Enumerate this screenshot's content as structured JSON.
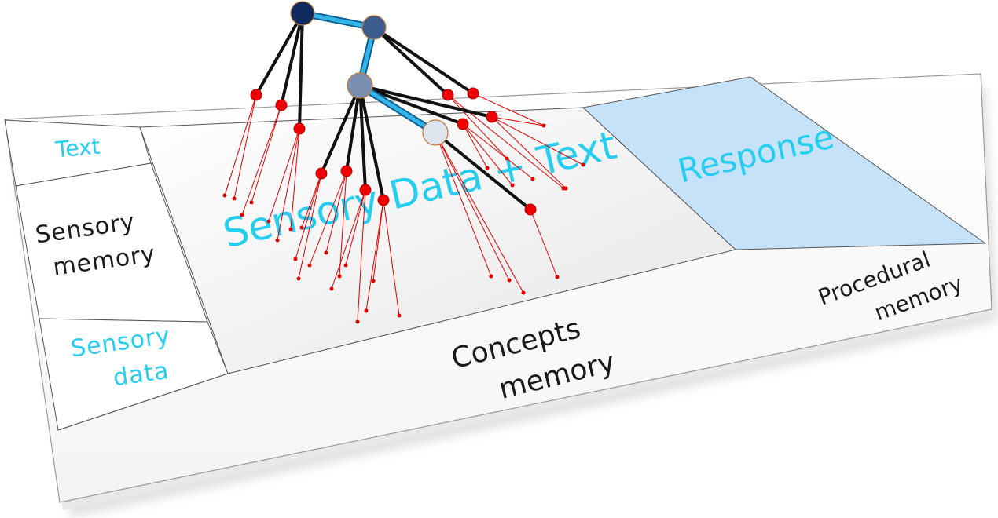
{
  "regions": {
    "text": "Text",
    "sensory_memory": [
      "Sensory",
      "memory"
    ],
    "sensory_data": [
      "Sensory",
      "data"
    ],
    "main_area": "Sensory Data + Text",
    "response": "Response",
    "concepts_memory": [
      "Concepts",
      "memory"
    ],
    "procedural_memory": [
      "Procedural",
      "memory"
    ]
  },
  "colors": {
    "cyan_text": "#25cdf0",
    "link_blue": "#1e9bd7",
    "link_black": "#111111",
    "leaf_red": "#e00000",
    "response_fill": "#c6e2f8",
    "node_1": "#0f2a5c",
    "node_2": "#3e5b8e",
    "node_3": "#7b8fb0",
    "node_4": "#dfe5ee"
  }
}
